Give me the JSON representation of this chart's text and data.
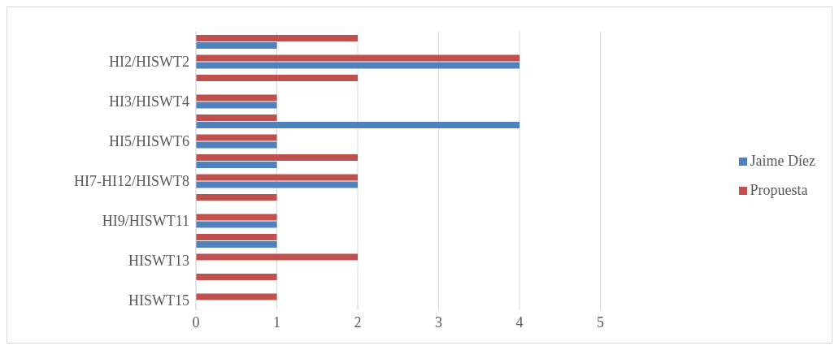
{
  "chart_data": {
    "type": "bar",
    "orientation": "horizontal",
    "categories": [
      null,
      "HI2/HISWT2",
      null,
      "HI3/HISWT4",
      null,
      "HI5/HISWT6",
      null,
      "HI7-HI12/HISWT8",
      null,
      "HI9/HISWT11",
      null,
      "HISWT13",
      null,
      "HISWT15"
    ],
    "series": [
      {
        "name": "Propuesta",
        "color": "#c0504d",
        "values": [
          2,
          4,
          2,
          1,
          1,
          1,
          2,
          2,
          1,
          1,
          1,
          2,
          1,
          1
        ]
      },
      {
        "name": "Jaime Díez",
        "color": "#4f81bd",
        "values": [
          1,
          4,
          0,
          1,
          4,
          1,
          1,
          2,
          0,
          1,
          1,
          0,
          0,
          0
        ]
      }
    ],
    "xlim": [
      0,
      5
    ],
    "xticks": [
      0,
      1,
      2,
      3,
      4,
      5
    ],
    "grid": "x",
    "legend": "right"
  }
}
